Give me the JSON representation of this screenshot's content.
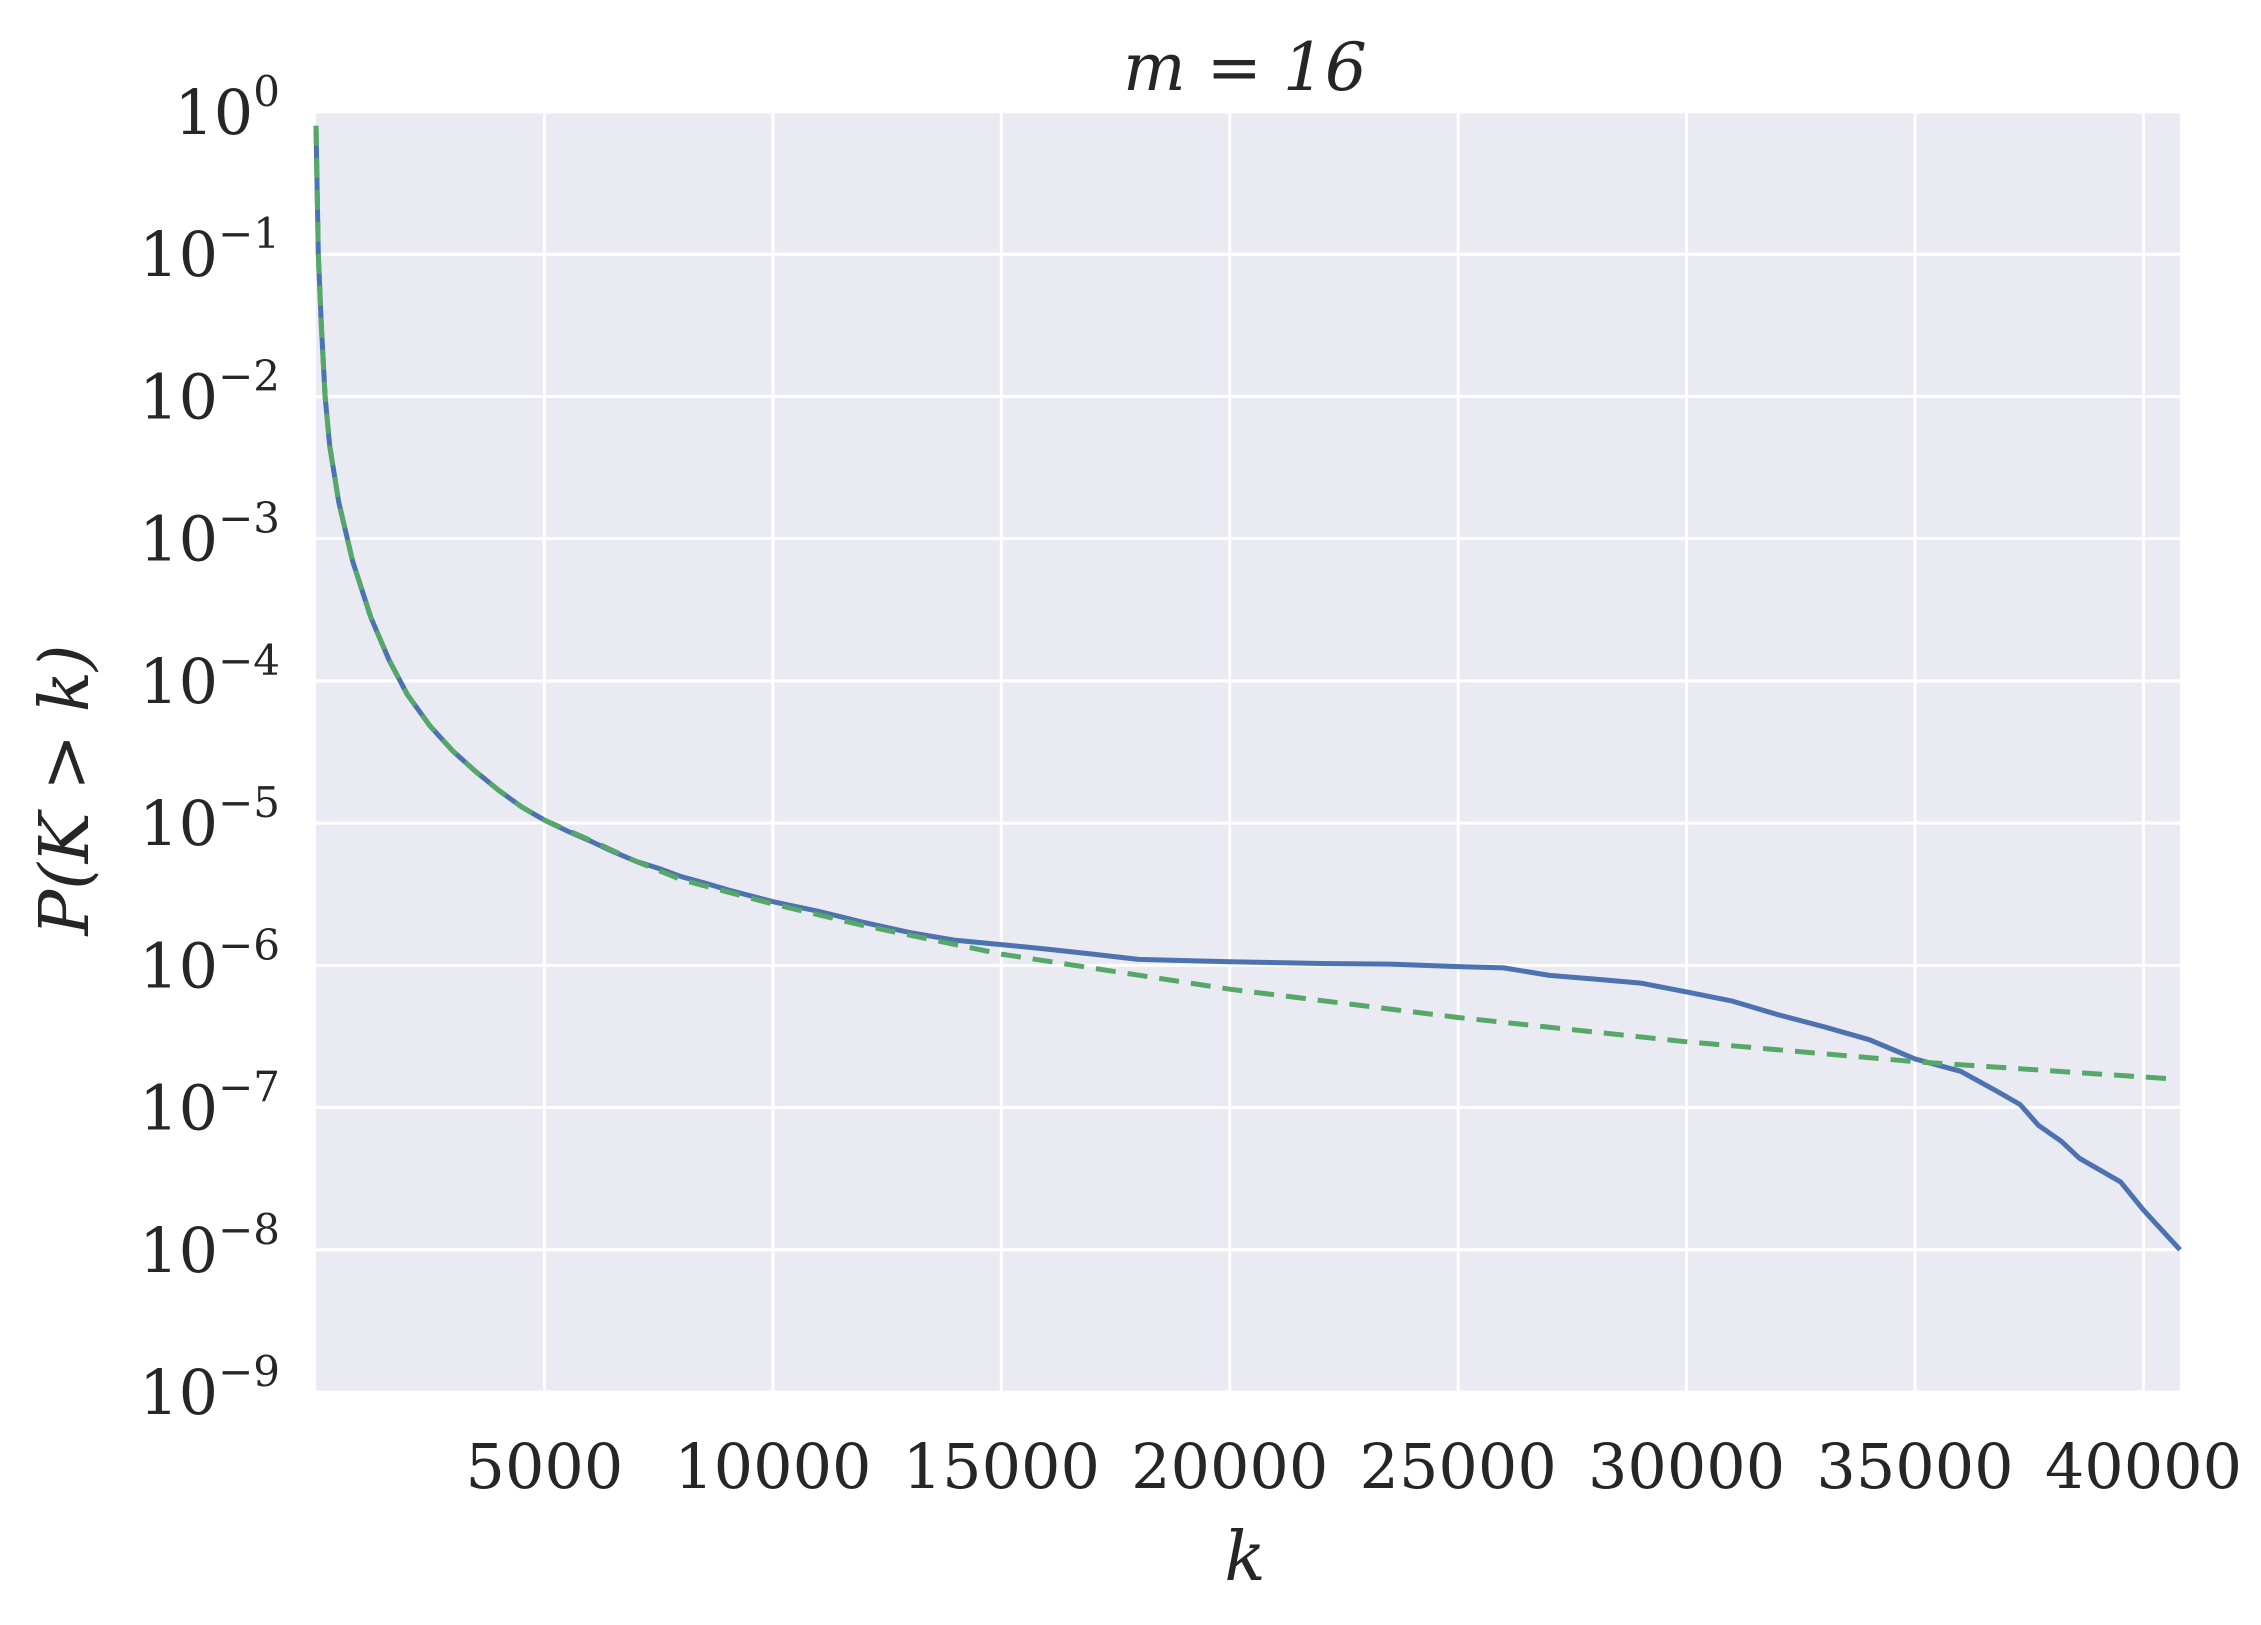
{
  "chart_data": {
    "type": "line",
    "title": "m = 16",
    "xlabel": "k",
    "ylabel": "P(K > k)",
    "xlim": [
      0,
      40800
    ],
    "ylim": [
      1e-09,
      1
    ],
    "yscale": "log",
    "xticks": [
      5000,
      10000,
      15000,
      20000,
      25000,
      30000,
      35000,
      40000
    ],
    "xtick_labels": [
      "5000",
      "10000",
      "15000",
      "20000",
      "25000",
      "30000",
      "35000",
      "40000"
    ],
    "yticks": [
      {
        "base": "10",
        "exp": "0",
        "value": 1
      },
      {
        "base": "10",
        "exp": "−1",
        "value": 0.1
      },
      {
        "base": "10",
        "exp": "−2",
        "value": 0.01
      },
      {
        "base": "10",
        "exp": "−3",
        "value": 0.001
      },
      {
        "base": "10",
        "exp": "−4",
        "value": 0.0001
      },
      {
        "base": "10",
        "exp": "−5",
        "value": 1e-05
      },
      {
        "base": "10",
        "exp": "−6",
        "value": 1e-06
      },
      {
        "base": "10",
        "exp": "−7",
        "value": 1e-07
      },
      {
        "base": "10",
        "exp": "−8",
        "value": 1e-08
      },
      {
        "base": "10",
        "exp": "−9",
        "value": 1e-09
      }
    ],
    "grid": true,
    "colors": {
      "background": "#eaeaf2",
      "grid": "#ffffff",
      "empirical": "#4c72b0",
      "fit": "#55a868",
      "text": "#262626"
    },
    "series": [
      {
        "style": "solid",
        "points": [
          [
            1,
            0.8
          ],
          [
            50,
            0.1
          ],
          [
            120,
            0.03
          ],
          [
            200,
            0.01
          ],
          [
            300,
            0.0045
          ],
          [
            500,
            0.0018
          ],
          [
            800,
            0.0007
          ],
          [
            1200,
            0.00028
          ],
          [
            1600,
            0.00014
          ],
          [
            2000,
            8e-05
          ],
          [
            2500,
            4.8e-05
          ],
          [
            3000,
            3.2e-05
          ],
          [
            3500,
            2.3e-05
          ],
          [
            4000,
            1.7e-05
          ],
          [
            4500,
            1.3e-05
          ],
          [
            5000,
            1.05e-05
          ],
          [
            5500,
            8.8e-06
          ],
          [
            6000,
            7.5e-06
          ],
          [
            6500,
            6.3e-06
          ],
          [
            7000,
            5.4e-06
          ],
          [
            7500,
            4.8e-06
          ],
          [
            8000,
            4.2e-06
          ],
          [
            8500,
            3.8e-06
          ],
          [
            9000,
            3.4e-06
          ],
          [
            10000,
            2.8e-06
          ],
          [
            11000,
            2.4e-06
          ],
          [
            12000,
            2e-06
          ],
          [
            13000,
            1.7e-06
          ],
          [
            14000,
            1.5e-06
          ],
          [
            15000,
            1.4e-06
          ],
          [
            16000,
            1.3e-06
          ],
          [
            17000,
            1.2e-06
          ],
          [
            18000,
            1.1e-06
          ],
          [
            20000,
            1.06e-06
          ],
          [
            22000,
            1.03e-06
          ],
          [
            23500,
            1.02e-06
          ],
          [
            25000,
            9.8e-07
          ],
          [
            26000,
            9.6e-07
          ],
          [
            27000,
            8.5e-07
          ],
          [
            28000,
            8e-07
          ],
          [
            29000,
            7.5e-07
          ],
          [
            30000,
            6.5e-07
          ],
          [
            31000,
            5.6e-07
          ],
          [
            32000,
            4.5e-07
          ],
          [
            33000,
            3.7e-07
          ],
          [
            34000,
            3e-07
          ],
          [
            35000,
            2.2e-07
          ],
          [
            36000,
            1.8e-07
          ],
          [
            36800,
            1.3e-07
          ],
          [
            37300,
            1.05e-07
          ],
          [
            37700,
            7.5e-08
          ],
          [
            38200,
            5.8e-08
          ],
          [
            38600,
            4.4e-08
          ],
          [
            39500,
            3e-08
          ],
          [
            40000,
            1.9e-08
          ],
          [
            40800,
            1e-08
          ]
        ]
      },
      {
        "style": "dashed",
        "points": [
          [
            1,
            0.8
          ],
          [
            50,
            0.1
          ],
          [
            120,
            0.03
          ],
          [
            200,
            0.01
          ],
          [
            300,
            0.0045
          ],
          [
            500,
            0.0018
          ],
          [
            800,
            0.0007
          ],
          [
            1200,
            0.00028
          ],
          [
            1600,
            0.00014
          ],
          [
            2000,
            8e-05
          ],
          [
            2500,
            4.8e-05
          ],
          [
            3000,
            3.2e-05
          ],
          [
            3500,
            2.3e-05
          ],
          [
            4000,
            1.7e-05
          ],
          [
            4500,
            1.3e-05
          ],
          [
            5000,
            1.05e-05
          ],
          [
            6000,
            7.6e-06
          ],
          [
            7000,
            5.4e-06
          ],
          [
            8000,
            4e-06
          ],
          [
            10000,
            2.7e-06
          ],
          [
            12000,
            1.9e-06
          ],
          [
            15000,
            1.2e-06
          ],
          [
            20000,
            6.8e-07
          ],
          [
            25000,
            4.3e-07
          ],
          [
            30000,
            2.9e-07
          ],
          [
            35000,
            2.1e-07
          ],
          [
            40500,
            1.6e-07
          ]
        ]
      }
    ]
  }
}
